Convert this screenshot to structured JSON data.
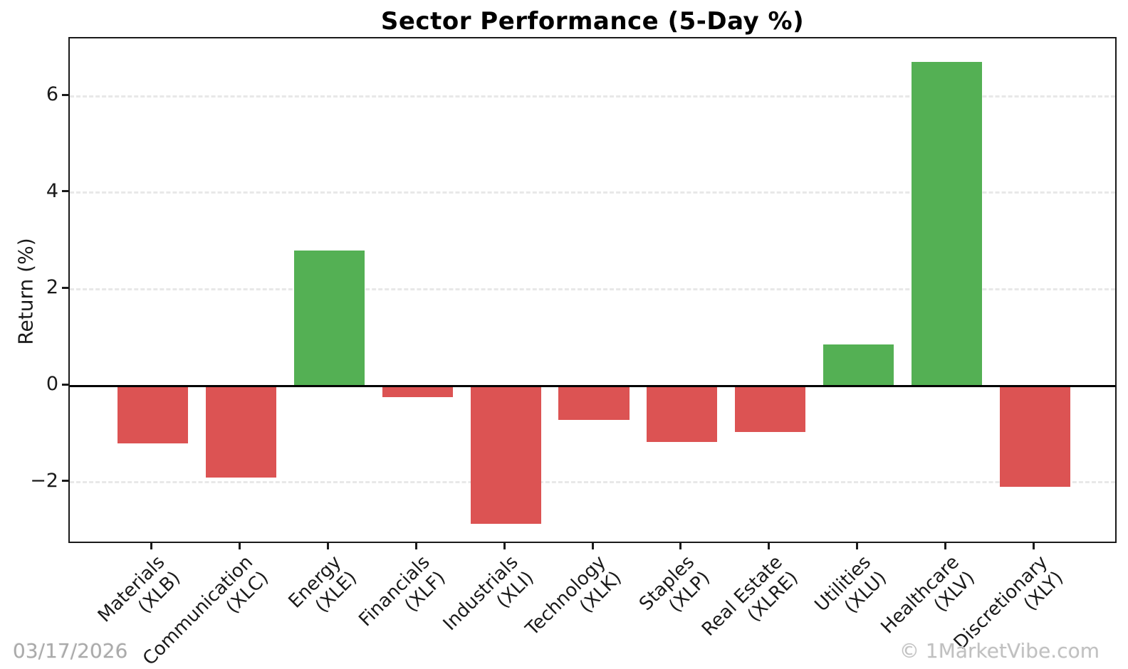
{
  "footer": {
    "date": "03/17/2026",
    "watermark": "© 1MarketVibe.com"
  },
  "chart_data": {
    "type": "bar",
    "title": "Sector Performance (5-Day %)",
    "xlabel": "",
    "ylabel": "Return (%)",
    "categories": [
      "Materials",
      "Communication",
      "Energy",
      "Financials",
      "Industrials",
      "Technology",
      "Staples",
      "Real Estate",
      "Utilities",
      "Healthcare",
      "Discretionary"
    ],
    "tickers": [
      "XLB",
      "XLC",
      "XLE",
      "XLF",
      "XLI",
      "XLK",
      "XLP",
      "XLRE",
      "XLU",
      "XLV",
      "XLY"
    ],
    "values": [
      -1.2,
      -1.9,
      2.8,
      -0.24,
      -2.86,
      -0.71,
      -1.16,
      -0.96,
      0.85,
      6.72,
      -2.1
    ],
    "ylim": [
      -3.29,
      7.2
    ],
    "yticks": [
      -2,
      0,
      2,
      4,
      6
    ],
    "ytick_labels": [
      "−2",
      "0",
      "2",
      "4",
      "6"
    ],
    "grid": true,
    "gridline_style": "dashed",
    "gridline_color": "#e8e8e8",
    "zero_line": true,
    "legend": false,
    "colors": {
      "positive": "#54b054",
      "negative": "#dc5353"
    },
    "layout": {
      "x_unit_offset": 0.94,
      "x_units_total": 11.88,
      "bar_width_units": 0.8
    }
  }
}
